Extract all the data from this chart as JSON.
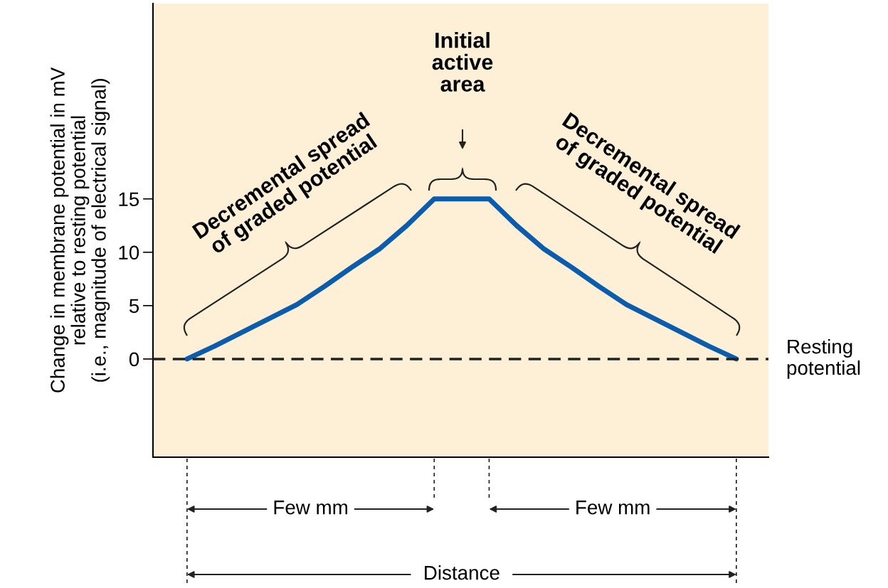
{
  "chart_data": {
    "type": "line",
    "ylabel": "Change in membrane potential in mV\nrelative to resting potential\n(i.e., magnitude of electrical signal)",
    "categories": [
      null,
      null,
      null,
      null,
      null,
      null,
      null,
      null,
      null,
      null,
      null,
      null,
      null,
      null,
      null,
      null,
      null,
      null,
      null,
      null,
      null
    ],
    "series": [
      {
        "color": "#0b5cad",
        "values": [
          0,
          1.2,
          2.5,
          3.8,
          5.1,
          6.8,
          8.6,
          10.3,
          12.5,
          15,
          15,
          15,
          12.5,
          10.3,
          8.6,
          6.8,
          5.1,
          3.8,
          2.5,
          1.2,
          0
        ]
      }
    ],
    "ylim": [
      -9.2,
      33.3
    ],
    "yticks": [
      0,
      5,
      10,
      15
    ],
    "ref_lines": [
      {
        "axis": "y",
        "value": 0,
        "label": "Resting\npotential",
        "color": "#222222",
        "line_style": "dashed"
      }
    ],
    "annotations": [
      "Decremental spread\nof graded potential",
      "Initial\nactive\narea",
      "Decremental spread\nof graded potential",
      "Few mm",
      "Few mm",
      "Distance"
    ],
    "marker": "none",
    "line_style": "solid",
    "grid": false,
    "legend": false
  }
}
